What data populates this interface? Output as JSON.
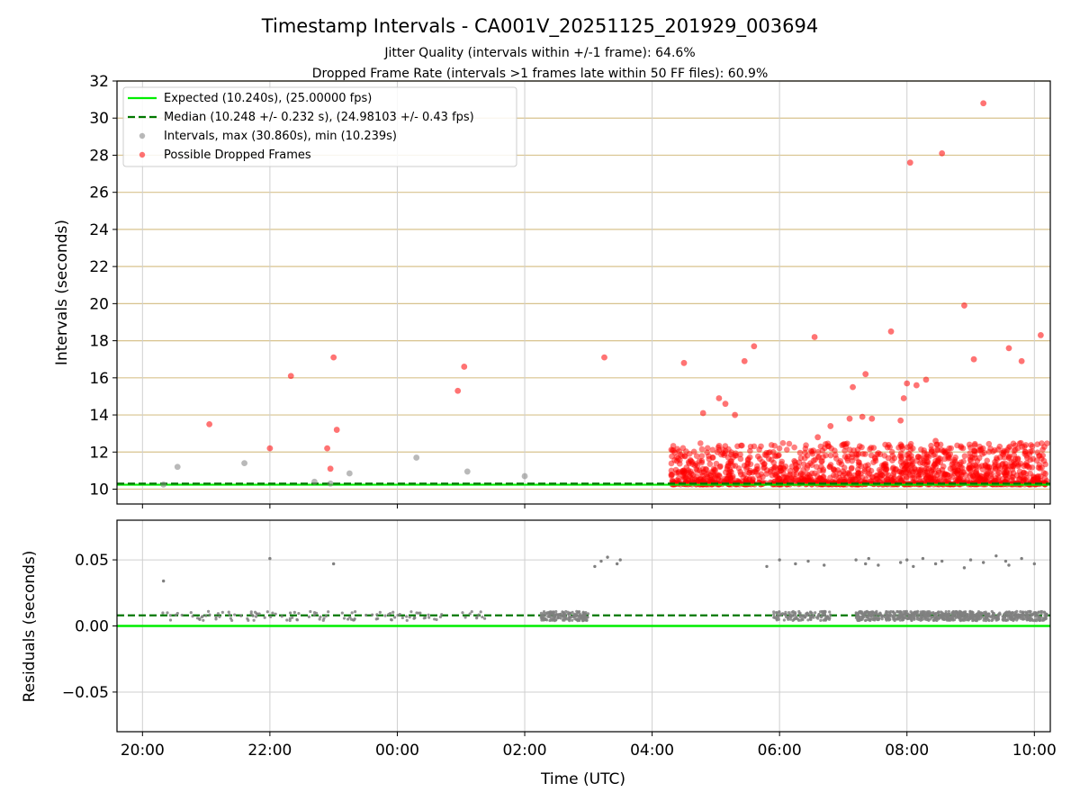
{
  "figure": {
    "title": "Timestamp Intervals - CA001V_20251125_201929_003694",
    "subtitle_line1": "Jitter Quality (intervals within +/-1 frame): 64.6%",
    "subtitle_line2": "Dropped Frame Rate (intervals >1 frames late within 50 FF files): 60.9%"
  },
  "chart_data": [
    {
      "type": "scatter",
      "panel": "intervals",
      "ylabel": "Intervals (seconds)",
      "xlabel": "",
      "ylim": [
        9.2,
        32
      ],
      "xlim_hours_since_2000": [
        -0.4,
        14.25
      ],
      "yticks": [
        10,
        12,
        14,
        16,
        18,
        20,
        22,
        24,
        26,
        28,
        30,
        32
      ],
      "ytick_labels": [
        "10",
        "12",
        "14",
        "16",
        "18",
        "20",
        "22",
        "24",
        "26",
        "28",
        "30",
        "32"
      ],
      "grid": "both",
      "legend_position": "top-left",
      "legend": [
        "Expected (10.240s), (25.00000 fps)",
        "Median (10.248 +/- 0.232 s), (24.98103 +/- 0.43 fps)",
        "Intervals, max (30.860s), min (10.239s)",
        "Possible Dropped Frames"
      ],
      "lines": {
        "expected": {
          "value": 10.24,
          "color": "#00ee00",
          "style": "solid"
        },
        "median": {
          "value": 10.248,
          "color": "#007700",
          "style": "dashed"
        }
      },
      "series": [
        {
          "name": "Intervals (sampled)",
          "color": "#808080",
          "x_hours": [
            0.33,
            0.55,
            1.6,
            2.7,
            2.95,
            3.25,
            4.3,
            5.1,
            6.0
          ],
          "values": [
            10.25,
            11.2,
            11.4,
            10.4,
            10.3,
            10.85,
            11.7,
            10.95,
            10.7
          ]
        },
        {
          "name": "Possible Dropped Frames (sampled)",
          "color": "#ff0000",
          "x_hours": [
            1.05,
            2.0,
            2.33,
            2.9,
            2.95,
            3.0,
            3.05,
            4.95,
            5.05,
            7.25,
            8.5,
            9.15,
            9.45,
            10.55,
            11.15,
            11.35,
            11.45,
            11.75,
            11.9,
            11.95,
            12.0,
            12.15,
            12.3,
            12.55,
            12.9,
            13.2,
            13.6,
            13.8,
            14.1,
            8.8,
            9.05,
            9.3,
            9.6,
            10.6,
            10.8,
            11.1,
            11.3,
            12.05,
            12.45,
            13.05
          ],
          "values": [
            13.5,
            12.2,
            16.1,
            12.2,
            11.1,
            17.1,
            13.2,
            15.3,
            16.6,
            17.1,
            16.8,
            14.6,
            16.9,
            18.2,
            15.5,
            16.2,
            13.8,
            18.5,
            13.7,
            14.9,
            15.7,
            15.6,
            15.9,
            28.1,
            19.9,
            30.8,
            17.6,
            16.9,
            18.3,
            14.1,
            14.9,
            14.0,
            17.7,
            12.8,
            13.4,
            13.8,
            13.9,
            27.6,
            12.6,
            17.0
          ]
        }
      ],
      "dense_bands": [
        {
          "name": "Possible Dropped Frames",
          "color": "#ff0000",
          "x_range_hours": [
            8.3,
            14.2
          ],
          "y_range": [
            10.25,
            12.5
          ]
        }
      ]
    },
    {
      "type": "scatter",
      "panel": "residuals",
      "ylabel": "Residuals (seconds)",
      "xlabel": "Time (UTC)",
      "ylim": [
        -0.08,
        0.08
      ],
      "xlim_hours_since_2000": [
        -0.4,
        14.25
      ],
      "yticks": [
        0.05,
        0.0,
        -0.05
      ],
      "ytick_labels": [
        "0.05",
        "0.00",
        "−0.05"
      ],
      "xticks_hours": [
        0,
        2,
        4,
        6,
        8,
        10,
        12,
        14
      ],
      "xtick_labels": [
        "20:00",
        "22:00",
        "00:00",
        "02:00",
        "04:00",
        "06:00",
        "08:00",
        "10:00"
      ],
      "grid": "both",
      "lines": {
        "expected": {
          "value": 0.0,
          "color": "#00ee00",
          "style": "solid"
        },
        "median": {
          "value": 0.008,
          "color": "#007700",
          "style": "dashed"
        }
      },
      "series": [
        {
          "name": "Residuals (sampled)",
          "color": "#808080",
          "x_hours": [
            0.33,
            2.0,
            3.0,
            7.1,
            7.2,
            7.3,
            7.45,
            7.5,
            9.8,
            10.0,
            10.25,
            10.45,
            10.7,
            11.2,
            11.35,
            11.4,
            11.55,
            11.9,
            12.0,
            12.1,
            12.25,
            12.45,
            12.55,
            12.9,
            13.0,
            13.2,
            13.4,
            13.55,
            13.6,
            13.8,
            14.0
          ],
          "values": [
            0.034,
            0.051,
            0.047,
            0.045,
            0.049,
            0.052,
            0.047,
            0.05,
            0.045,
            0.05,
            0.047,
            0.049,
            0.046,
            0.05,
            0.047,
            0.051,
            0.046,
            0.048,
            0.05,
            0.045,
            0.051,
            0.047,
            0.049,
            0.044,
            0.05,
            0.048,
            0.053,
            0.049,
            0.046,
            0.051,
            0.047
          ]
        }
      ],
      "dense_bands": [
        {
          "name": "Residuals",
          "color": "#808080",
          "x_range_hours": [
            0.3,
            14.2
          ],
          "y_range": [
            0.004,
            0.011
          ]
        }
      ]
    }
  ]
}
